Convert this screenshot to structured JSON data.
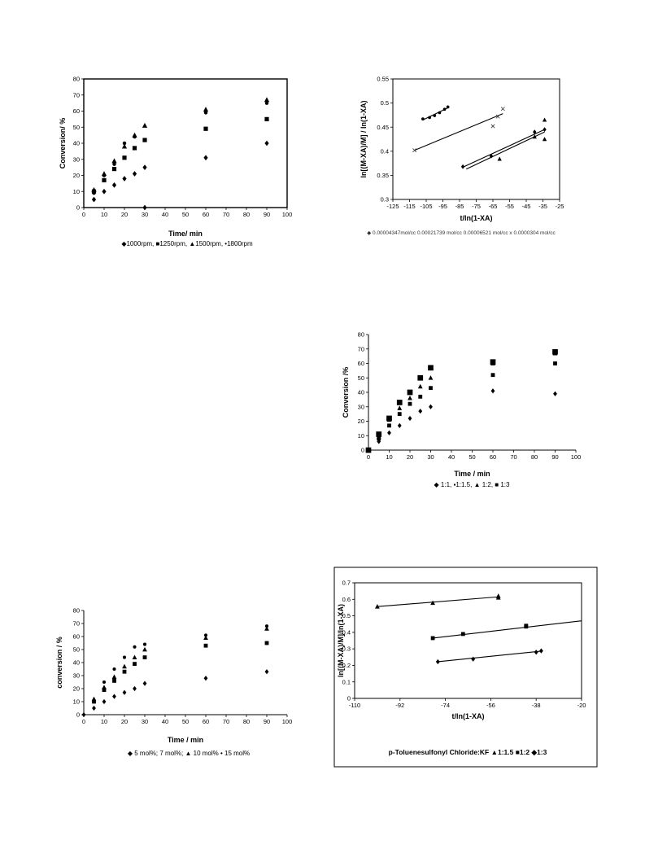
{
  "chart_data": [
    {
      "type": "scatter",
      "xlabel": "Time/ min",
      "ylabel": "Conversion/ %",
      "xlim": [
        0,
        100
      ],
      "ylim": [
        0,
        80
      ],
      "xticks": [
        "0",
        "10",
        "20",
        "30",
        "40",
        "50",
        "60",
        "70",
        "80",
        "90",
        "100"
      ],
      "yticks": [
        "0",
        "10",
        "20",
        "30",
        "40",
        "50",
        "60",
        "70",
        "80"
      ],
      "legend_text": "◆1000rpm, ■1250rpm, ▲1500rpm, •1800rpm",
      "series": [
        {
          "marker": "diamond",
          "points": [
            [
              5,
              5
            ],
            [
              10,
              10
            ],
            [
              15,
              14
            ],
            [
              20,
              18
            ],
            [
              25,
              21
            ],
            [
              30,
              25
            ],
            [
              30,
              0
            ],
            [
              60,
              31
            ],
            [
              90,
              40
            ]
          ]
        },
        {
          "marker": "square",
          "points": [
            [
              5,
              10
            ],
            [
              10,
              17
            ],
            [
              15,
              24
            ],
            [
              20,
              31
            ],
            [
              25,
              37
            ],
            [
              30,
              42
            ],
            [
              60,
              49
            ],
            [
              90,
              55
            ]
          ]
        },
        {
          "marker": "triangle",
          "points": [
            [
              5,
              11
            ],
            [
              10,
              21
            ],
            [
              15,
              29
            ],
            [
              20,
              38
            ],
            [
              25,
              45
            ],
            [
              30,
              51
            ],
            [
              60,
              61
            ],
            [
              90,
              67
            ]
          ]
        },
        {
          "marker": "dot",
          "points": [
            [
              5,
              9
            ],
            [
              10,
              20
            ],
            [
              15,
              27
            ],
            [
              20,
              40
            ],
            [
              25,
              44
            ],
            [
              60,
              59
            ],
            [
              90,
              65
            ]
          ]
        }
      ]
    },
    {
      "type": "scatter",
      "xlabel": "t/ln(1-XA)",
      "ylabel": "ln[(M-XA)/M] / ln(1-XA)",
      "xlim": [
        -125,
        -25
      ],
      "ylim": [
        0.3,
        0.55
      ],
      "xticks": [
        "-125",
        "-115",
        "-105",
        "-95",
        "-85",
        "-75",
        "-65",
        "-55",
        "-45",
        "-35",
        "-25"
      ],
      "yticks": [
        "0.3",
        "0.35",
        "0.4",
        "0.45",
        "0.5",
        "0.55"
      ],
      "legend_text": "◆ 0.00004347mol/cc  0.00021739 mol/cc  0.00006521 mol/cc x 0.0000304 mol/cc",
      "series": [
        {
          "marker": "diamond",
          "points": [
            [
              -83,
              0.368
            ],
            [
              -66,
              0.39
            ],
            [
              -40,
              0.44
            ],
            [
              -34,
              0.445
            ]
          ],
          "fit": [
            [
              -83,
              0.367
            ],
            [
              -34,
              0.445
            ]
          ]
        },
        {
          "marker": "triangle",
          "points": [
            [
              -61,
              0.384
            ],
            [
              -40,
              0.43
            ],
            [
              -34,
              0.465
            ],
            [
              -34,
              0.425
            ]
          ],
          "fit": [
            [
              -81,
              0.363
            ],
            [
              -34,
              0.44
            ]
          ]
        },
        {
          "marker": "dot",
          "points": [
            [
              -107,
              0.467
            ],
            [
              -103,
              0.47
            ],
            [
              -100,
              0.474
            ],
            [
              -97,
              0.48
            ],
            [
              -94,
              0.487
            ],
            [
              -92,
              0.492
            ]
          ],
          "fit": [
            [
              -107,
              0.465
            ],
            [
              -92,
              0.49
            ]
          ]
        },
        {
          "marker": "x",
          "points": [
            [
              -112,
              0.402
            ],
            [
              -65,
              0.452
            ],
            [
              -62,
              0.472
            ],
            [
              -59,
              0.488
            ]
          ],
          "fit": [
            [
              -112,
              0.402
            ],
            [
              -59,
              0.478
            ]
          ]
        }
      ]
    },
    {
      "type": "scatter",
      "xlabel": "Time / min",
      "ylabel": "Conversion /%",
      "xlim": [
        0,
        100
      ],
      "ylim": [
        0,
        80
      ],
      "xticks": [
        "0",
        "10",
        "20",
        "30",
        "40",
        "50",
        "60",
        "70",
        "80",
        "90",
        "100"
      ],
      "yticks": [
        "0",
        "10",
        "20",
        "30",
        "40",
        "50",
        "60",
        "70",
        "80"
      ],
      "legend_text": "◆ 1:1, ▪1:1.5, ▲ 1:2, ■ 1:3",
      "series": [
        {
          "marker": "diamond",
          "points": [
            [
              0,
              0
            ],
            [
              5,
              6
            ],
            [
              10,
              12
            ],
            [
              15,
              17
            ],
            [
              20,
              22
            ],
            [
              25,
              27
            ],
            [
              30,
              30
            ],
            [
              60,
              41
            ],
            [
              90,
              39
            ]
          ]
        },
        {
          "marker": "square",
          "points": [
            [
              5,
              8
            ],
            [
              10,
              17
            ],
            [
              15,
              25
            ],
            [
              20,
              32
            ],
            [
              25,
              37
            ],
            [
              30,
              43
            ],
            [
              60,
              52
            ],
            [
              90,
              60
            ]
          ]
        },
        {
          "marker": "triangle",
          "points": [
            [
              5,
              9
            ],
            [
              10,
              21
            ],
            [
              15,
              29
            ],
            [
              20,
              36
            ],
            [
              25,
              44
            ],
            [
              30,
              50
            ],
            [
              60,
              60
            ],
            [
              90,
              67
            ]
          ]
        },
        {
          "marker": "bigsquare",
          "points": [
            [
              0,
              0
            ],
            [
              5,
              11
            ],
            [
              10,
              22
            ],
            [
              15,
              33
            ],
            [
              20,
              40
            ],
            [
              25,
              50
            ],
            [
              30,
              57
            ],
            [
              60,
              61
            ],
            [
              90,
              68
            ]
          ]
        }
      ]
    },
    {
      "type": "scatter",
      "xlabel": "Time / min",
      "ylabel": "conversion / %",
      "xlim": [
        0,
        100
      ],
      "ylim": [
        0,
        80
      ],
      "xticks": [
        "0",
        "10",
        "20",
        "30",
        "40",
        "50",
        "60",
        "70",
        "80",
        "90",
        "100"
      ],
      "yticks": [
        "0",
        "10",
        "20",
        "30",
        "40",
        "50",
        "60",
        "70",
        "80"
      ],
      "legend_text": "◆ 5 mol%; 7 mol%;  ▲ 10 mol%  • 15 mol%",
      "series": [
        {
          "marker": "diamond",
          "points": [
            [
              0,
              0
            ],
            [
              5,
              5
            ],
            [
              10,
              10
            ],
            [
              15,
              14
            ],
            [
              20,
              17
            ],
            [
              25,
              20
            ],
            [
              30,
              24
            ],
            [
              60,
              28
            ],
            [
              90,
              33
            ]
          ]
        },
        {
          "marker": "square",
          "points": [
            [
              5,
              10
            ],
            [
              10,
              19
            ],
            [
              15,
              26
            ],
            [
              20,
              33
            ],
            [
              25,
              39
            ],
            [
              30,
              44
            ],
            [
              60,
              53
            ],
            [
              90,
              55
            ]
          ]
        },
        {
          "marker": "triangle",
          "points": [
            [
              5,
              12
            ],
            [
              10,
              21
            ],
            [
              15,
              29
            ],
            [
              20,
              37
            ],
            [
              25,
              44
            ],
            [
              30,
              50
            ],
            [
              60,
              59
            ],
            [
              90,
              66
            ]
          ]
        },
        {
          "marker": "dot",
          "points": [
            [
              10,
              25
            ],
            [
              15,
              35
            ],
            [
              20,
              44
            ],
            [
              25,
              52
            ],
            [
              30,
              54
            ],
            [
              60,
              61
            ],
            [
              90,
              68
            ]
          ]
        }
      ]
    },
    {
      "type": "scatter",
      "xlabel": "t/ln(1-XA)",
      "ylabel": "ln[(M-XA)/M]/ln(1-XA)",
      "xlim": [
        -110,
        -20
      ],
      "ylim": [
        0,
        0.7
      ],
      "xticks": [
        "-110",
        "-92",
        "-74",
        "-56",
        "-38",
        "-20"
      ],
      "yticks": [
        "0",
        "0.1",
        "0.2",
        "0.3",
        "0.4",
        "0.5",
        "0.6",
        "0.7"
      ],
      "legend_text": "p-Toluenesulfonyl  Chloride:KF ▲1:1.5 ■1:2 ◆1:3",
      "series": [
        {
          "marker": "triangle",
          "points": [
            [
              -101,
              0.556
            ],
            [
              -79,
              0.578
            ],
            [
              -53,
              0.61
            ],
            [
              -53,
              0.62
            ]
          ],
          "fit": [
            [
              -101,
              0.556
            ],
            [
              -53,
              0.615
            ]
          ]
        },
        {
          "marker": "square",
          "points": [
            [
              -79,
              0.365
            ],
            [
              -67,
              0.39
            ],
            [
              -42,
              0.435
            ],
            [
              -42,
              0.44
            ]
          ],
          "fit": [
            [
              -79,
              0.365
            ],
            [
              -20,
              0.47
            ]
          ]
        },
        {
          "marker": "diamond",
          "points": [
            [
              -77,
              0.222
            ],
            [
              -63,
              0.238
            ],
            [
              -38,
              0.28
            ],
            [
              -36,
              0.288
            ]
          ],
          "fit": [
            [
              -77,
              0.222
            ],
            [
              -36,
              0.286
            ]
          ]
        }
      ]
    }
  ]
}
